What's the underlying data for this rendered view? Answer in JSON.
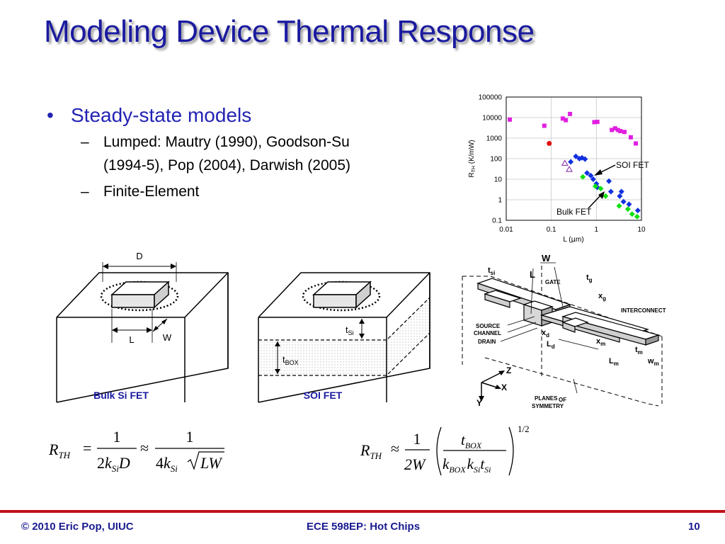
{
  "slide": {
    "title": "Modeling Device Thermal Response",
    "bullets": {
      "main": "Steady-state models",
      "sub1_line1": "Lumped: Mautry (1990), Goodson-Su",
      "sub1_line2": "(1994-5), Pop (2004), Darwish (2005)",
      "sub2": "Finite-Element"
    }
  },
  "chart_data": {
    "type": "scatter",
    "ylabel_main": "R",
    "ylabel_sub": "TH",
    "ylabel_unit": " (K/mW)",
    "xlabel_main": "L (",
    "xlabel_mu": "μ",
    "xlabel_tail": "m)",
    "x_scale": "log",
    "y_scale": "log",
    "xlim": [
      0.01,
      10
    ],
    "ylim": [
      0.1,
      100000
    ],
    "x_ticks": [
      0.01,
      0.1,
      1,
      10
    ],
    "x_tick_labels": [
      "0.01",
      "0.1",
      "1",
      "10"
    ],
    "y_ticks": [
      0.1,
      1,
      10,
      100,
      1000,
      10000,
      100000
    ],
    "y_tick_labels": [
      "0.1",
      "1",
      "10",
      "100",
      "1000",
      "10000",
      "100000"
    ],
    "grid": true,
    "annotations": [
      {
        "text": "SOI FET",
        "target": [
          1.05,
          10
        ]
      },
      {
        "text": "Bulk FET",
        "target": [
          2.2,
          1.6
        ]
      }
    ],
    "series": [
      {
        "marker": "square",
        "color": "#e020e0",
        "points": [
          [
            0.012,
            8000
          ],
          [
            0.07,
            4000
          ],
          [
            0.18,
            9000
          ],
          [
            0.21,
            7500
          ],
          [
            0.26,
            15000
          ],
          [
            0.9,
            6000
          ],
          [
            1.05,
            6200
          ],
          [
            2.2,
            2500
          ],
          [
            2.6,
            3000
          ],
          [
            3.0,
            2500
          ],
          [
            3.4,
            2200
          ],
          [
            4.2,
            2000
          ],
          [
            5.8,
            1100
          ],
          [
            7.5,
            550
          ]
        ]
      },
      {
        "marker": "diamond",
        "color": "#1030e0",
        "points": [
          [
            0.27,
            70
          ],
          [
            0.35,
            130
          ],
          [
            0.42,
            100
          ],
          [
            0.48,
            110
          ],
          [
            0.56,
            95
          ],
          [
            0.62,
            20
          ],
          [
            0.75,
            15
          ],
          [
            0.85,
            10
          ],
          [
            1.0,
            6
          ],
          [
            1.05,
            4
          ],
          [
            1.9,
            8
          ],
          [
            2.1,
            2.5
          ],
          [
            3.3,
            1.5
          ],
          [
            3.6,
            2.5
          ],
          [
            4.0,
            0.8
          ],
          [
            5.3,
            0.6
          ],
          [
            8.3,
            0.3
          ]
        ]
      },
      {
        "marker": "diamond",
        "color": "#10e010",
        "points": [
          [
            0.5,
            13
          ],
          [
            0.95,
            4.5
          ],
          [
            1.25,
            3.5
          ],
          [
            1.6,
            1.5
          ],
          [
            3.2,
            0.5
          ],
          [
            5.0,
            0.35
          ],
          [
            6.2,
            0.2
          ],
          [
            8.0,
            0.15
          ]
        ]
      },
      {
        "marker": "circle",
        "color": "#e01010",
        "points": [
          [
            0.09,
            550
          ]
        ]
      },
      {
        "marker": "triangle",
        "color": "#8020a0",
        "points": [
          [
            0.2,
            60
          ],
          [
            0.25,
            30
          ]
        ]
      }
    ]
  },
  "diagram_bulk": {
    "label_D": "D",
    "label_L": "L",
    "label_W": "W",
    "caption": "Bulk Si FET"
  },
  "diagram_soi": {
    "label_t": "t",
    "label_si_sub": "Si",
    "label_box_sub": "BOX",
    "caption": "SOI FET"
  },
  "diagram_fe": {
    "t_si": "t",
    "t_si_sub": "si",
    "W": "W",
    "L": "L",
    "gate": "GATE",
    "t_g": "t",
    "t_g_sub": "g",
    "x_g": "x",
    "x_g_sub": "g",
    "interconnect": "INTERCONNECT",
    "source": "SOURCE",
    "channel": "CHANNEL",
    "drain": "DRAIN",
    "x_d": "x",
    "x_d_sub": "d",
    "L_d": "L",
    "L_d_sub": "d",
    "x_m": "x",
    "x_m_sub": "m",
    "t_m": "t",
    "t_m_sub": "m",
    "L_m": "L",
    "L_m_sub": "m",
    "w_m": "w",
    "w_m_sub": "m",
    "axis_z": "Z",
    "axis_x": "X",
    "axis_y": "Y",
    "planes1": "PLANES",
    "planes_of": "OF",
    "planes2": "SYMMETRY"
  },
  "equations": {
    "bulk": {
      "R": "R",
      "TH": "TH",
      "eq": "=",
      "one": "1",
      "two": "2",
      "k": "k",
      "Si": "Si",
      "D": "D",
      "approx": "≈",
      "four": "4",
      "LW": "LW"
    },
    "soi": {
      "R": "R",
      "TH": "TH",
      "approx": "≈",
      "one": "1",
      "twoW": "2W",
      "t": "t",
      "BOX": "BOX",
      "k": "k",
      "Si": "Si",
      "exp": "1/2"
    }
  },
  "footer": {
    "left": "© 2010 Eric Pop, UIUC",
    "center": "ECE 598EP: Hot Chips",
    "right": "10"
  }
}
